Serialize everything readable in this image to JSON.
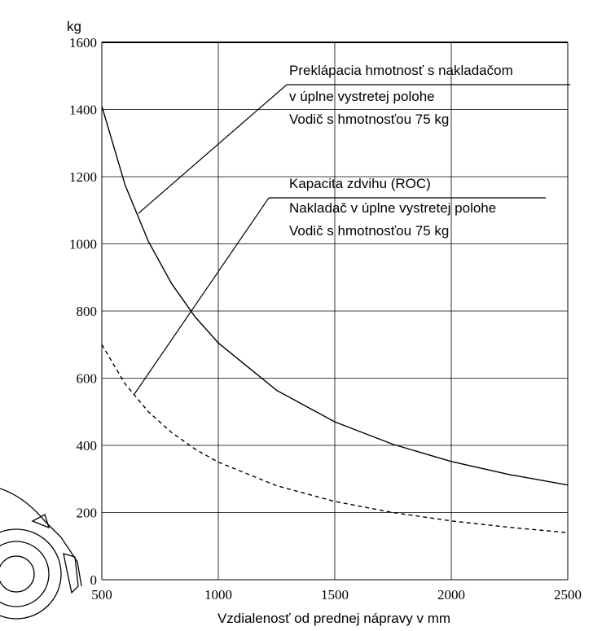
{
  "chart_data": {
    "type": "line",
    "y_unit": "kg",
    "xlabel": "Vzdialenosť od prednej nápravy v mm",
    "x": [
      500,
      600,
      700,
      800,
      900,
      1000,
      1250,
      1500,
      1750,
      2000,
      2250,
      2500
    ],
    "series": [
      {
        "color": "#000000",
        "style": "solid",
        "values": [
          1410,
          1175,
          1007,
          881,
          783,
          705,
          564,
          470,
          403,
          352,
          313,
          282
        ]
      },
      {
        "color": "#000000",
        "style": "dashed",
        "values": [
          700,
          583,
          500,
          438,
          389,
          350,
          280,
          233,
          200,
          175,
          156,
          140
        ]
      }
    ],
    "annotations": [
      {
        "lines": [
          "Preklápacia hmotnosť s nakladačom",
          "v úplne vystretej polohe",
          "Vodič s hmotnosťou 75 kg"
        ]
      },
      {
        "lines": [
          "Kapacita zdvihu (ROC)",
          "Nakladač v úplne vystretej polohe",
          "Vodič s hmotnosťou 75 kg"
        ]
      }
    ],
    "xlim": [
      500,
      2500
    ],
    "xticks": [
      500,
      1000,
      1500,
      2000,
      2500
    ],
    "ylim": [
      0,
      1600
    ],
    "yticks": [
      0,
      200,
      400,
      600,
      800,
      1000,
      1200,
      1400,
      1600
    ],
    "grid": true
  }
}
